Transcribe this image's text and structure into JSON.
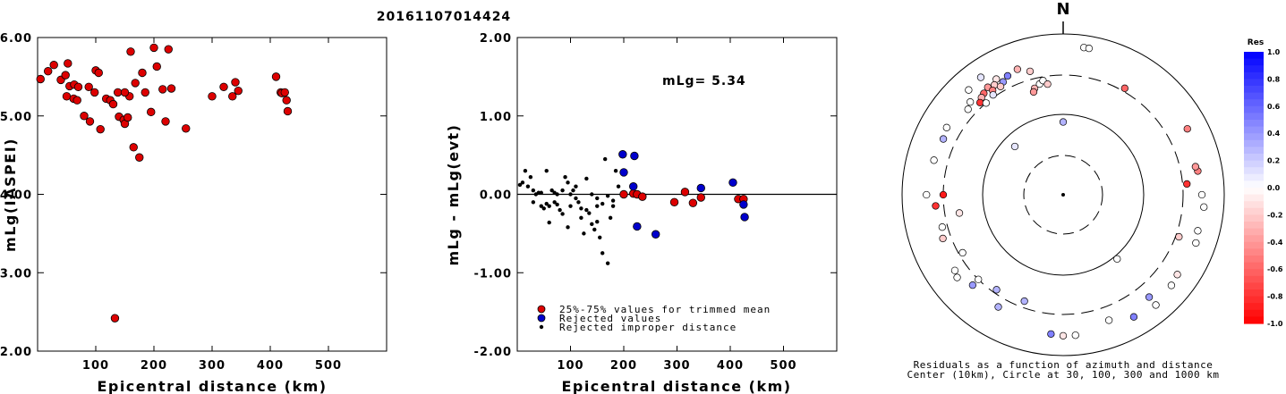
{
  "title": "20161107014424",
  "chart_data": [
    {
      "type": "scatter",
      "xlabel": "Epicentral distance (km)",
      "ylabel": "mLg(IASPEI)",
      "xlim": [
        0,
        600
      ],
      "ylim": [
        2.0,
        6.0
      ],
      "xticks": [
        "100",
        "200",
        "300",
        "400",
        "500"
      ],
      "yticks": [
        "2.00",
        "3.00",
        "4.00",
        "5.00",
        "6.00"
      ],
      "series": [
        {
          "color": "#dd0000",
          "x": [
            5,
            18,
            28,
            40,
            48,
            52,
            55,
            50,
            63,
            70,
            62,
            68,
            80,
            88,
            100,
            105,
            98,
            90,
            108,
            118,
            125,
            130,
            138,
            140,
            148,
            150,
            155,
            158,
            150,
            165,
            160,
            168,
            175,
            180,
            185,
            195,
            200,
            205,
            215,
            220,
            225,
            230,
            255,
            300,
            320,
            335,
            345,
            340,
            410,
            418,
            420,
            425,
            428,
            430,
            133
          ],
          "y": [
            5.47,
            5.57,
            5.65,
            5.46,
            5.52,
            5.67,
            5.38,
            5.25,
            5.4,
            5.37,
            5.22,
            5.2,
            5.0,
            5.37,
            5.58,
            5.55,
            5.3,
            4.93,
            4.83,
            5.22,
            5.2,
            5.15,
            5.3,
            4.99,
            4.95,
            4.9,
            4.98,
            5.25,
            5.3,
            4.6,
            5.82,
            5.42,
            4.47,
            5.55,
            5.3,
            5.05,
            5.87,
            5.63,
            5.34,
            4.93,
            5.85,
            5.35,
            4.84,
            5.25,
            5.37,
            5.25,
            5.32,
            5.43,
            5.5,
            5.3,
            5.29,
            5.3,
            5.2,
            5.06,
            2.42
          ]
        }
      ]
    },
    {
      "type": "scatter",
      "xlabel": "Epicentral distance (km)",
      "ylabel": "mLg - mLg(evt)",
      "xlim": [
        0,
        600
      ],
      "ylim": [
        -2.0,
        2.0
      ],
      "xticks": [
        "100",
        "200",
        "300",
        "400",
        "500"
      ],
      "yticks": [
        "-2.00",
        "-1.00",
        "0.00",
        "1.00",
        "2.00"
      ],
      "annotation": "mLg= 5.34",
      "reference_line": 0.0,
      "series": [
        {
          "name": "25%-75% values for trimmed mean",
          "color": "#dd0000",
          "x": [
            200,
            218,
            225,
            235,
            295,
            315,
            330,
            345,
            415,
            425
          ],
          "y": [
            0.0,
            0.01,
            0.0,
            -0.03,
            -0.1,
            0.03,
            -0.11,
            -0.04,
            -0.06,
            -0.06
          ]
        },
        {
          "name": "Rejected values",
          "color": "#0000cc",
          "x": [
            198,
            220,
            200,
            218,
            225,
            260,
            345,
            405,
            425,
            427
          ],
          "y": [
            0.51,
            0.49,
            0.28,
            0.1,
            -0.41,
            -0.51,
            0.08,
            0.15,
            -0.13,
            -0.29
          ]
        },
        {
          "name": "Rejected improper distance",
          "color": "#000000",
          "x": [
            5,
            10,
            15,
            20,
            25,
            30,
            35,
            40,
            45,
            50,
            55,
            60,
            65,
            70,
            75,
            80,
            85,
            90,
            95,
            100,
            105,
            110,
            115,
            120,
            125,
            130,
            135,
            140,
            145,
            150,
            155,
            160,
            165,
            170,
            175,
            180,
            185,
            190,
            55,
            75,
            95,
            60,
            110,
            140,
            150,
            160,
            170,
            180,
            100,
            85,
            70,
            120,
            130,
            150,
            45,
            30
          ],
          "y": [
            0.12,
            0.15,
            0.3,
            0.1,
            0.22,
            0.05,
            0.0,
            0.02,
            -0.15,
            -0.18,
            -0.12,
            -0.36,
            0.05,
            0.02,
            -0.13,
            -0.2,
            0.05,
            0.22,
            0.15,
            0.0,
            0.05,
            0.1,
            -0.1,
            -0.18,
            -0.5,
            0.2,
            -0.24,
            -0.38,
            -0.45,
            -0.05,
            -0.55,
            -0.75,
            0.45,
            -0.88,
            -0.3,
            -0.15,
            0.3,
            0.1,
            0.3,
            0.0,
            -0.42,
            -0.15,
            -0.05,
            0.0,
            -0.35,
            -0.12,
            -0.02,
            -0.08,
            -0.15,
            -0.25,
            -0.1,
            -0.3,
            -0.2,
            -0.15,
            0.02,
            -0.1
          ]
        }
      ],
      "legend_placement": "bottom-left"
    },
    {
      "type": "scatter",
      "polar": true,
      "north_label": "N",
      "caption_line1": "Residuals as a function of azimuth and distance",
      "caption_line2": "Center (10km), Circle at 30, 100, 300 and 1000 km",
      "colorbar_title": "Res",
      "colorbar_ticks": [
        "1.0",
        "0.8",
        "0.6",
        "0.4",
        "0.2",
        "0.0",
        "-0.2",
        "-0.4",
        "-0.6",
        "-0.8",
        "-1.0"
      ],
      "colorbar_range": [
        -1.0,
        1.0
      ],
      "points": [
        {
          "az": 8,
          "dist": 700,
          "res": 0.0
        },
        {
          "az": 10,
          "dist": 700,
          "res": 0.0
        },
        {
          "az": 325,
          "dist": 600,
          "res": 0.1
        },
        {
          "az": 318,
          "dist": 560,
          "res": 0.0
        },
        {
          "az": 330,
          "dist": 450,
          "res": -0.1
        },
        {
          "az": 325,
          "dist": 420,
          "res": -0.4
        },
        {
          "az": 328,
          "dist": 400,
          "res": -0.2
        },
        {
          "az": 322,
          "dist": 390,
          "res": -0.6
        },
        {
          "az": 320,
          "dist": 370,
          "res": -0.3
        },
        {
          "az": 326,
          "dist": 360,
          "res": -0.5
        },
        {
          "az": 332,
          "dist": 380,
          "res": 0.4
        },
        {
          "az": 335,
          "dist": 420,
          "res": 0.5
        },
        {
          "az": 330,
          "dist": 350,
          "res": -0.2
        },
        {
          "az": 318,
          "dist": 340,
          "res": -0.8
        },
        {
          "az": 315,
          "dist": 420,
          "res": 0.0
        },
        {
          "az": 312,
          "dist": 380,
          "res": 0.0
        },
        {
          "az": 325,
          "dist": 320,
          "res": 0.1
        },
        {
          "az": 320,
          "dist": 300,
          "res": 0.0
        },
        {
          "az": 340,
          "dist": 450,
          "res": -0.3
        },
        {
          "az": 345,
          "dist": 380,
          "res": -0.2
        },
        {
          "az": 300,
          "dist": 460,
          "res": 0.0
        },
        {
          "az": 295,
          "dist": 430,
          "res": 0.3
        },
        {
          "az": 285,
          "dist": 450,
          "res": 0.0
        },
        {
          "az": 270,
          "dist": 490,
          "res": 0.0
        },
        {
          "az": 265,
          "dist": 380,
          "res": -0.8
        },
        {
          "az": 255,
          "dist": 350,
          "res": 0.0
        },
        {
          "az": 250,
          "dist": 380,
          "res": -0.2
        },
        {
          "az": 235,
          "dist": 430,
          "res": 0.0
        },
        {
          "az": 232,
          "dist": 460,
          "res": 0.0
        },
        {
          "az": 225,
          "dist": 380,
          "res": 0.4
        },
        {
          "az": 215,
          "dist": 270,
          "res": 0.3
        },
        {
          "az": 225,
          "dist": 300,
          "res": 0.0
        },
        {
          "az": 240,
          "dist": 270,
          "res": 0.0
        },
        {
          "az": 260,
          "dist": 200,
          "res": -0.1
        },
        {
          "az": 185,
          "dist": 540,
          "res": 0.5
        },
        {
          "az": 180,
          "dist": 560,
          "res": -0.1
        },
        {
          "az": 175,
          "dist": 560,
          "res": 0.0
        },
        {
          "az": 150,
          "dist": 560,
          "res": 0.5
        },
        {
          "az": 140,
          "dist": 610,
          "res": 0.0
        },
        {
          "az": 130,
          "dist": 560,
          "res": 0.0
        },
        {
          "az": 125,
          "dist": 530,
          "res": -0.1
        },
        {
          "az": 110,
          "dist": 560,
          "res": 0.0
        },
        {
          "az": 105,
          "dist": 530,
          "res": 0.0
        },
        {
          "az": 95,
          "dist": 560,
          "res": 0.0
        },
        {
          "az": 90,
          "dist": 520,
          "res": 0.0
        },
        {
          "az": 85,
          "dist": 340,
          "res": -0.8
        },
        {
          "az": 80,
          "dist": 490,
          "res": -0.5
        },
        {
          "az": 78,
          "dist": 470,
          "res": -0.4
        },
        {
          "az": 62,
          "dist": 550,
          "res": -0.5
        },
        {
          "az": 30,
          "dist": 330,
          "res": -0.6
        },
        {
          "az": 345,
          "dist": 230,
          "res": -0.3
        },
        {
          "az": 348,
          "dist": 250,
          "res": 0.0
        },
        {
          "az": 350,
          "dist": 270,
          "res": 0.0
        },
        {
          "az": 352,
          "dist": 240,
          "res": -0.2
        },
        {
          "az": 344,
          "dist": 210,
          "res": -0.4
        },
        {
          "az": 0,
          "dist": 80,
          "res": 0.3
        },
        {
          "az": 315,
          "dist": 70,
          "res": 0.1
        },
        {
          "az": 140,
          "dist": 110,
          "res": 0.0
        },
        {
          "az": 110,
          "dist": 330,
          "res": -0.2
        },
        {
          "az": 270,
          "dist": 300,
          "res": -0.9
        },
        {
          "az": 200,
          "dist": 250,
          "res": 0.3
        },
        {
          "az": 210,
          "dist": 400,
          "res": 0.3
        },
        {
          "az": 160,
          "dist": 450,
          "res": 0.0
        },
        {
          "az": 140,
          "dist": 450,
          "res": 0.4
        }
      ]
    }
  ]
}
